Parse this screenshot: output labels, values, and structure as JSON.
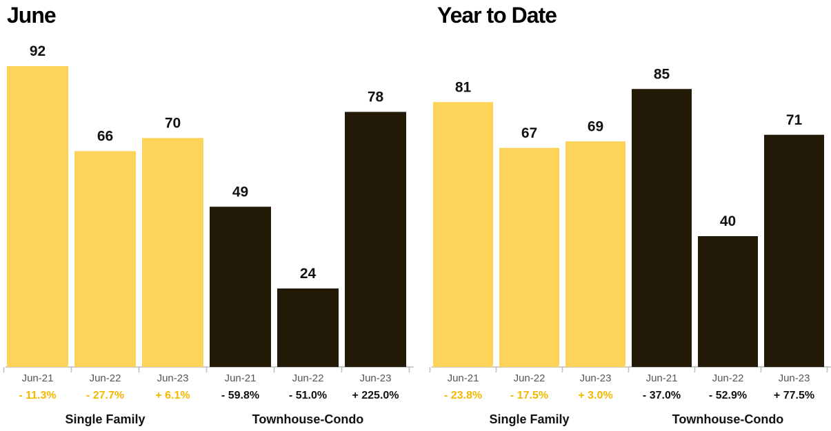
{
  "chart_data": [
    {
      "type": "bar",
      "title": "June",
      "groups": [
        "Single Family",
        "Townhouse-Condo"
      ],
      "categories": [
        "Jun-21",
        "Jun-22",
        "Jun-23"
      ],
      "series": [
        {
          "values": [
            92,
            66,
            70
          ],
          "changes": [
            "- 11.3%",
            "- 27.7%",
            "+ 6.1%"
          ],
          "color": "#fdd35a"
        },
        {
          "values": [
            49,
            24,
            78
          ],
          "changes": [
            "- 59.8%",
            "- 51.0%",
            "+ 225.0%"
          ],
          "color": "#231a08"
        }
      ],
      "ylim": [
        0,
        100
      ]
    },
    {
      "type": "bar",
      "title": "Year to Date",
      "groups": [
        "Single Family",
        "Townhouse-Condo"
      ],
      "categories": [
        "Jun-21",
        "Jun-22",
        "Jun-23"
      ],
      "series": [
        {
          "values": [
            81,
            67,
            69
          ],
          "changes": [
            "- 23.8%",
            "- 17.5%",
            "+ 3.0%"
          ],
          "color": "#fdd35a"
        },
        {
          "values": [
            85,
            40,
            71
          ],
          "changes": [
            "- 37.0%",
            "- 52.9%",
            "+ 77.5%"
          ],
          "color": "#231a08"
        }
      ],
      "ylim": [
        0,
        100
      ]
    }
  ],
  "colors": {
    "single_family_bar": "#fdd35a",
    "single_family_change": "#f5b800",
    "townhouse_bar": "#231a08",
    "townhouse_change": "#111111",
    "axis": "#bbbbbb"
  }
}
